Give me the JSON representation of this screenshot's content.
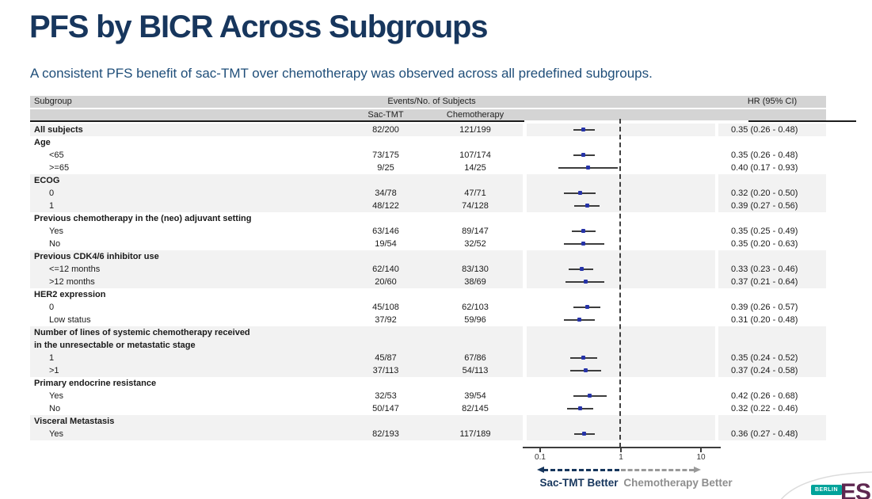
{
  "slide": {
    "title": "PFS by BICR Across Subgroups",
    "subtitle": "A consistent PFS benefit of sac-TMT over chemotherapy was observed across all predefined subgroups."
  },
  "table": {
    "headers": {
      "subgroup": "Subgroup",
      "events": "Events/No. of Subjects",
      "arm1": "Sac-TMT",
      "arm2": "Chemotherapy",
      "hr": "HR (95% CI)"
    },
    "rows": [
      {
        "label": "All subjects",
        "bold": true,
        "indent": false,
        "shade": true,
        "sac": "82/200",
        "chemo": "121/199",
        "hr": "0.35 (0.26 - 0.48)",
        "est": 0.35,
        "lo": 0.26,
        "hi": 0.48
      },
      {
        "label": "Age",
        "bold": true,
        "indent": false,
        "shade": false
      },
      {
        "label": "<65",
        "bold": false,
        "indent": true,
        "shade": false,
        "sac": "73/175",
        "chemo": "107/174",
        "hr": "0.35 (0.26 - 0.48)",
        "est": 0.35,
        "lo": 0.26,
        "hi": 0.48
      },
      {
        "label": ">=65",
        "bold": false,
        "indent": true,
        "shade": false,
        "sac": "9/25",
        "chemo": "14/25",
        "hr": "0.40 (0.17 - 0.93)",
        "est": 0.4,
        "lo": 0.17,
        "hi": 0.93
      },
      {
        "label": "ECOG",
        "bold": true,
        "indent": false,
        "shade": true
      },
      {
        "label": "0",
        "bold": false,
        "indent": true,
        "shade": true,
        "sac": "34/78",
        "chemo": "47/71",
        "hr": "0.32 (0.20 - 0.50)",
        "est": 0.32,
        "lo": 0.2,
        "hi": 0.5
      },
      {
        "label": "1",
        "bold": false,
        "indent": true,
        "shade": true,
        "sac": "48/122",
        "chemo": "74/128",
        "hr": "0.39 (0.27 - 0.56)",
        "est": 0.39,
        "lo": 0.27,
        "hi": 0.56
      },
      {
        "label": "Previous chemotherapy in the (neo) adjuvant setting",
        "bold": true,
        "indent": false,
        "shade": false
      },
      {
        "label": "Yes",
        "bold": false,
        "indent": true,
        "shade": false,
        "sac": "63/146",
        "chemo": "89/147",
        "hr": "0.35 (0.25 - 0.49)",
        "est": 0.35,
        "lo": 0.25,
        "hi": 0.49
      },
      {
        "label": "No",
        "bold": false,
        "indent": true,
        "shade": false,
        "sac": "19/54",
        "chemo": "32/52",
        "hr": "0.35 (0.20 - 0.63)",
        "est": 0.35,
        "lo": 0.2,
        "hi": 0.63
      },
      {
        "label": "Previous CDK4/6 inhibitor use",
        "bold": true,
        "indent": false,
        "shade": true
      },
      {
        "label": "<=12 months",
        "bold": false,
        "indent": true,
        "shade": true,
        "sac": "62/140",
        "chemo": "83/130",
        "hr": "0.33 (0.23 - 0.46)",
        "est": 0.33,
        "lo": 0.23,
        "hi": 0.46
      },
      {
        "label": ">12 months",
        "bold": false,
        "indent": true,
        "shade": true,
        "sac": "20/60",
        "chemo": "38/69",
        "hr": "0.37 (0.21 - 0.64)",
        "est": 0.37,
        "lo": 0.21,
        "hi": 0.64
      },
      {
        "label": "HER2 expression",
        "bold": true,
        "indent": false,
        "shade": false
      },
      {
        "label": "0",
        "bold": false,
        "indent": true,
        "shade": false,
        "sac": "45/108",
        "chemo": "62/103",
        "hr": "0.39 (0.26 - 0.57)",
        "est": 0.39,
        "lo": 0.26,
        "hi": 0.57
      },
      {
        "label": "Low status",
        "bold": false,
        "indent": true,
        "shade": false,
        "sac": "37/92",
        "chemo": "59/96",
        "hr": "0.31 (0.20 - 0.48)",
        "est": 0.31,
        "lo": 0.2,
        "hi": 0.48
      },
      {
        "label": "Number of lines of systemic chemotherapy received",
        "bold": true,
        "indent": false,
        "shade": true
      },
      {
        "label": "in the unresectable or metastatic stage",
        "bold": true,
        "indent": false,
        "shade": true
      },
      {
        "label": "1",
        "bold": false,
        "indent": true,
        "shade": true,
        "sac": "45/87",
        "chemo": "67/86",
        "hr": "0.35 (0.24 - 0.52)",
        "est": 0.35,
        "lo": 0.24,
        "hi": 0.52
      },
      {
        "label": ">1",
        "bold": false,
        "indent": true,
        "shade": true,
        "sac": "37/113",
        "chemo": "54/113",
        "hr": "0.37 (0.24 - 0.58)",
        "est": 0.37,
        "lo": 0.24,
        "hi": 0.58
      },
      {
        "label": "Primary endocrine resistance",
        "bold": true,
        "indent": false,
        "shade": false
      },
      {
        "label": "Yes",
        "bold": false,
        "indent": true,
        "shade": false,
        "sac": "32/53",
        "chemo": "39/54",
        "hr": "0.42 (0.26 - 0.68)",
        "est": 0.42,
        "lo": 0.26,
        "hi": 0.68
      },
      {
        "label": "No",
        "bold": false,
        "indent": true,
        "shade": false,
        "sac": "50/147",
        "chemo": "82/145",
        "hr": "0.32 (0.22 - 0.46)",
        "est": 0.32,
        "lo": 0.22,
        "hi": 0.46
      },
      {
        "label": "Visceral Metastasis",
        "bold": true,
        "indent": false,
        "shade": true
      },
      {
        "label": "Yes",
        "bold": false,
        "indent": true,
        "shade": true,
        "sac": "82/193",
        "chemo": "117/189",
        "hr": "0.36 (0.27 - 0.48)",
        "est": 0.36,
        "lo": 0.27,
        "hi": 0.48
      }
    ]
  },
  "chart_data": {
    "type": "scatter",
    "subtype": "forest-plot",
    "title": "PFS by BICR Across Subgroups",
    "x_scale": "log10",
    "x_ticks": [
      0.1,
      1,
      10
    ],
    "x_range": [
      0.1,
      10
    ],
    "reference_line": 1.0,
    "legend_position": "bottom",
    "points": [
      {
        "label": "All subjects",
        "hr": 0.35,
        "ci_low": 0.26,
        "ci_high": 0.48
      },
      {
        "label": "Age <65",
        "hr": 0.35,
        "ci_low": 0.26,
        "ci_high": 0.48
      },
      {
        "label": "Age >=65",
        "hr": 0.4,
        "ci_low": 0.17,
        "ci_high": 0.93
      },
      {
        "label": "ECOG 0",
        "hr": 0.32,
        "ci_low": 0.2,
        "ci_high": 0.5
      },
      {
        "label": "ECOG 1",
        "hr": 0.39,
        "ci_low": 0.27,
        "ci_high": 0.56
      },
      {
        "label": "Previous chemotherapy in the (neo) adjuvant setting: Yes",
        "hr": 0.35,
        "ci_low": 0.25,
        "ci_high": 0.49
      },
      {
        "label": "Previous chemotherapy in the (neo) adjuvant setting: No",
        "hr": 0.35,
        "ci_low": 0.2,
        "ci_high": 0.63
      },
      {
        "label": "Previous CDK4/6 inhibitor use <=12 months",
        "hr": 0.33,
        "ci_low": 0.23,
        "ci_high": 0.46
      },
      {
        "label": "Previous CDK4/6 inhibitor use >12 months",
        "hr": 0.37,
        "ci_low": 0.21,
        "ci_high": 0.64
      },
      {
        "label": "HER2 expression 0",
        "hr": 0.39,
        "ci_low": 0.26,
        "ci_high": 0.57
      },
      {
        "label": "HER2 expression Low status",
        "hr": 0.31,
        "ci_low": 0.2,
        "ci_high": 0.48
      },
      {
        "label": "Lines of systemic chemotherapy (unresectable/metastatic): 1",
        "hr": 0.35,
        "ci_low": 0.24,
        "ci_high": 0.52
      },
      {
        "label": "Lines of systemic chemotherapy (unresectable/metastatic): >1",
        "hr": 0.37,
        "ci_low": 0.24,
        "ci_high": 0.58
      },
      {
        "label": "Primary endocrine resistance Yes",
        "hr": 0.42,
        "ci_low": 0.26,
        "ci_high": 0.68
      },
      {
        "label": "Primary endocrine resistance No",
        "hr": 0.32,
        "ci_low": 0.22,
        "ci_high": 0.46
      },
      {
        "label": "Visceral Metastasis Yes",
        "hr": 0.36,
        "ci_low": 0.27,
        "ci_high": 0.48
      }
    ]
  },
  "axis": {
    "ticks": [
      "0.1",
      "1",
      "10"
    ]
  },
  "legend": {
    "left": "Sac-TMT Better",
    "right": "Chemotherapy Better"
  },
  "colors": {
    "title_navy": "#17365d",
    "subtitle_blue": "#1f4e79",
    "header_gray": "#d4d4d4",
    "row_shade": "#f2f2f2",
    "marker_blue": "#2633a8",
    "better_gray": "#8e8e8e",
    "logo_teal": "#00a39a",
    "esmo_plum": "#5e2750",
    "esmo_green": "#7aa33c",
    "esmo_orange": "#e8862d"
  },
  "logo": {
    "city": "BERLIN",
    "org": "ESMO"
  }
}
